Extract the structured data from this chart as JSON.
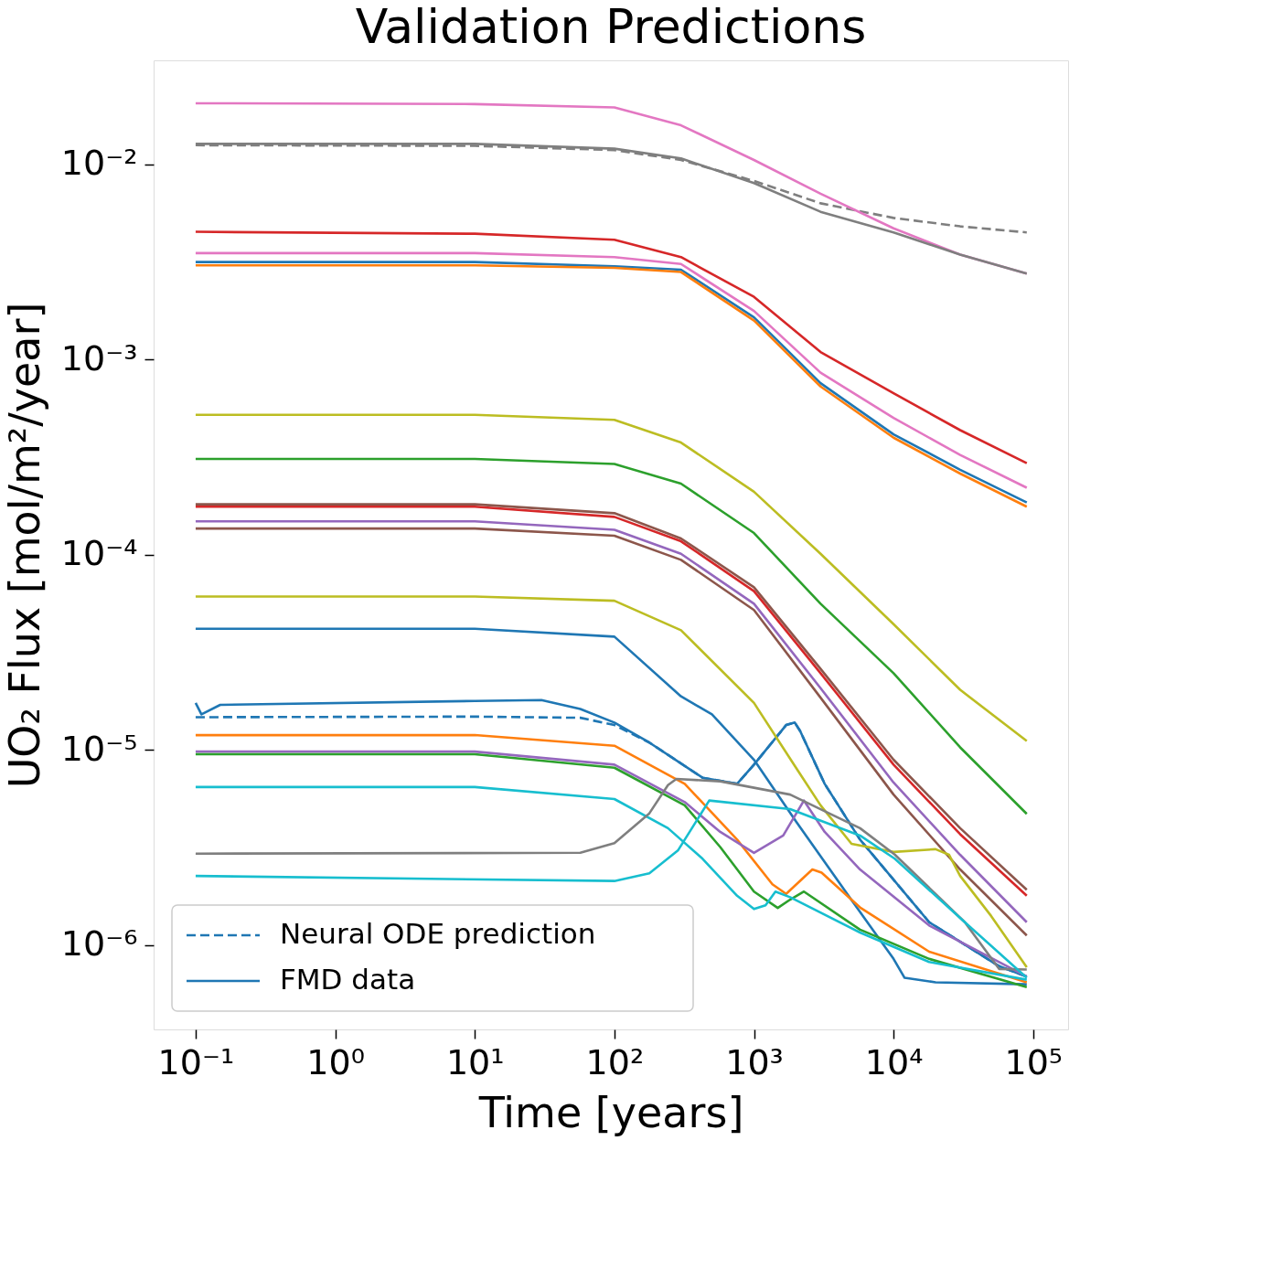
{
  "chart_data": {
    "type": "line",
    "title": "Validation Predictions",
    "xlabel": "Time [years]",
    "ylabel": "UO₂ Flux [mol/m²/year]",
    "log": "xy",
    "grid": false,
    "legend": "bottom left",
    "xlim": [
      0.05,
      178000
    ],
    "ylim": [
      3.7e-07,
      0.034
    ],
    "xticks": [
      {
        "value": 0.1,
        "label": "10⁻¹"
      },
      {
        "value": 1,
        "label": "10⁰"
      },
      {
        "value": 10,
        "label": "10¹"
      },
      {
        "value": 100,
        "label": "10²"
      },
      {
        "value": 1000,
        "label": "10³"
      },
      {
        "value": 10000,
        "label": "10⁴"
      },
      {
        "value": 100000,
        "label": "10⁵"
      }
    ],
    "yticks": [
      {
        "value": 1e-06,
        "label": "10⁻⁶"
      },
      {
        "value": 1e-05,
        "label": "10⁻⁵"
      },
      {
        "value": 0.0001,
        "label": "10⁻⁴"
      },
      {
        "value": 0.001,
        "label": "10⁻³"
      },
      {
        "value": 0.01,
        "label": "10⁻²"
      }
    ],
    "x": [
      0.1,
      10,
      100,
      300,
      1000,
      3000,
      10000,
      30000,
      90000
    ],
    "series": [
      {
        "name": "Neural ODE prediction",
        "color": "#1f77b4",
        "line_style": "dashed",
        "x": [
          0.1,
          10,
          57,
          100,
          178,
          428,
          757,
          1000,
          1700,
          1960,
          2140,
          3210,
          5750,
          18000,
          57000,
          90000
        ],
        "values": [
          1.47e-05,
          1.48e-05,
          1.46e-05,
          1.34e-05,
          1.09e-05,
          7.2e-06,
          6.7e-06,
          8.4e-06,
          1.34e-05,
          1.38e-05,
          1.25e-05,
          6.7e-06,
          3.47e-06,
          1.31e-06,
          7.8e-07,
          6.9e-07
        ]
      },
      {
        "name": "FMD data",
        "color": "#1f77b4",
        "line_style": "solid",
        "x": [
          0.1,
          0.11,
          0.15,
          10,
          30,
          57,
          100,
          178,
          428,
          757,
          1000,
          1700,
          1960,
          2140,
          3210,
          5750,
          18000,
          57000,
          90000
        ],
        "values": [
          1.74e-05,
          1.52e-05,
          1.7e-05,
          1.78e-05,
          1.8e-05,
          1.62e-05,
          1.38e-05,
          1.09e-05,
          7.2e-06,
          6.7e-06,
          8.4e-06,
          1.34e-05,
          1.38e-05,
          1.25e-05,
          6.7e-06,
          3.47e-06,
          1.31e-06,
          7.8e-07,
          6.9e-07
        ]
      },
      {
        "color": "#e377c2",
        "line_style": "solid",
        "values": [
          0.0205,
          0.0203,
          0.0195,
          0.0158,
          0.0105,
          0.00705,
          0.00469,
          0.00344,
          0.00275
        ]
      },
      {
        "color": "#7f7f7f",
        "line_style": "solid",
        "values": [
          0.0127,
          0.0127,
          0.012,
          0.0107,
          0.008,
          0.0057,
          0.00447,
          0.00344,
          0.00275
        ]
      },
      {
        "color": "#7f7f7f",
        "line_style": "dashed",
        "values": [
          0.0125,
          0.0124,
          0.0118,
          0.0105,
          0.0082,
          0.0063,
          0.0053,
          0.0048,
          0.00447
        ]
      },
      {
        "color": "#d62728",
        "line_style": "solid",
        "values": [
          0.0045,
          0.0044,
          0.0041,
          0.00334,
          0.00209,
          0.00109,
          0.00067,
          0.000434,
          0.000294
        ]
      },
      {
        "color": "#e377c2",
        "line_style": "solid",
        "values": [
          0.0035,
          0.0035,
          0.00334,
          0.00308,
          0.00177,
          0.000855,
          0.000501,
          0.000324,
          0.00022
        ]
      },
      {
        "color": "#1f77b4",
        "line_style": "solid",
        "values": [
          0.00315,
          0.00315,
          0.003,
          0.00288,
          0.00164,
          0.000755,
          0.000413,
          0.000272,
          0.000185
        ]
      },
      {
        "color": "#ff7f0e",
        "line_style": "solid",
        "values": [
          0.00303,
          0.00303,
          0.00294,
          0.0028,
          0.00158,
          0.000726,
          0.000397,
          0.00026,
          0.000176
        ]
      },
      {
        "color": "#bcbd22",
        "line_style": "solid",
        "values": [
          0.00052,
          0.00052,
          0.00049,
          0.000375,
          0.00021,
          0.000101,
          4.4e-05,
          2.03e-05,
          1.11e-05
        ]
      },
      {
        "color": "#2ca02c",
        "line_style": "solid",
        "values": [
          0.000309,
          0.000309,
          0.000291,
          0.000231,
          0.000129,
          5.6e-05,
          2.47e-05,
          1.03e-05,
          4.7e-06
        ]
      },
      {
        "color": "#8c564b",
        "line_style": "solid",
        "values": [
          0.000181,
          0.000181,
          0.000163,
          0.000121,
          6.8e-05,
          2.6e-05,
          8.9e-06,
          3.97e-06,
          1.92e-06
        ]
      },
      {
        "color": "#d62728",
        "line_style": "solid",
        "values": [
          0.000176,
          0.000176,
          0.000156,
          0.000117,
          6.5e-05,
          2.47e-05,
          8.4e-06,
          3.7e-06,
          1.79e-06
        ]
      },
      {
        "color": "#9467bd",
        "line_style": "solid",
        "values": [
          0.000148,
          0.000148,
          0.000134,
          0.000101,
          5.6e-05,
          2.07e-05,
          6.8e-06,
          2.9e-06,
          1.31e-06
        ]
      },
      {
        "color": "#8c564b",
        "line_style": "solid",
        "values": [
          0.000136,
          0.000136,
          0.000125,
          9.4e-05,
          5.2e-05,
          1.85e-05,
          5.9e-06,
          2.44e-06,
          1.12e-06
        ]
      },
      {
        "color": "#bcbd22",
        "line_style": "solid",
        "x": [
          0.1,
          10,
          100,
          300,
          1000,
          2000,
          3000,
          5000,
          10000,
          20000,
          25000,
          30000,
          50000,
          90000
        ],
        "values": [
          6.1e-05,
          6.1e-05,
          5.8e-05,
          4.1e-05,
          1.74e-05,
          8.1e-06,
          5.2e-06,
          3.3e-06,
          3e-06,
          3.1e-06,
          2.9e-06,
          2.26e-06,
          1.41e-06,
          7.7e-07
        ]
      },
      {
        "color": "#1f77b4",
        "line_style": "solid",
        "x": [
          0.1,
          10,
          100,
          300,
          500,
          1000,
          2000,
          5000,
          10000,
          12000,
          20000,
          90000
        ],
        "values": [
          4.17e-05,
          4.17e-05,
          3.8e-05,
          1.88e-05,
          1.52e-05,
          8.9e-06,
          4.3e-06,
          1.7e-06,
          8.5e-07,
          6.8e-07,
          6.45e-07,
          6.3e-07
        ]
      },
      {
        "color": "#ff7f0e",
        "line_style": "solid",
        "x": [
          0.1,
          10,
          100,
          319,
          757,
          1355,
          1700,
          2620,
          3050,
          5750,
          18000,
          90000
        ],
        "values": [
          1.19e-05,
          1.19e-05,
          1.05e-05,
          6.7e-06,
          3.47e-06,
          2.05e-06,
          1.83e-06,
          2.44e-06,
          2.35e-06,
          1.56e-06,
          9.25e-07,
          6.45e-07
        ]
      },
      {
        "color": "#9467bd",
        "line_style": "solid",
        "x": [
          0.1,
          10,
          100,
          319,
          573,
          1000,
          1620,
          2280,
          3210,
          5750,
          18000,
          90000
        ],
        "values": [
          9.8e-06,
          9.8e-06,
          8.4e-06,
          5.4e-06,
          3.8e-06,
          2.97e-06,
          3.64e-06,
          5.5e-06,
          3.8e-06,
          2.44e-06,
          1.26e-06,
          6.9e-07
        ]
      },
      {
        "color": "#2ca02c",
        "line_style": "solid",
        "x": [
          0.1,
          10,
          100,
          319,
          573,
          1000,
          1480,
          1815,
          2280,
          5750,
          18000,
          90000
        ],
        "values": [
          9.5e-06,
          9.5e-06,
          8.1e-06,
          5.2e-06,
          3.18e-06,
          1.88e-06,
          1.55e-06,
          1.71e-06,
          1.88e-06,
          1.2e-06,
          8.5e-07,
          6.1e-07
        ]
      },
      {
        "color": "#17becf",
        "line_style": "solid",
        "x": [
          0.1,
          10,
          100,
          242,
          428,
          757,
          1000,
          1210,
          1425,
          1815,
          5750,
          18000,
          90000
        ],
        "values": [
          6.45e-06,
          6.45e-06,
          5.6e-06,
          3.97e-06,
          2.77e-06,
          1.79e-06,
          1.53e-06,
          1.6e-06,
          1.88e-06,
          1.76e-06,
          1.16e-06,
          8.2e-07,
          6.65e-07
        ]
      },
      {
        "color": "#7f7f7f",
        "line_style": "solid",
        "x": [
          0.1,
          57,
          100,
          178,
          242,
          278,
          573,
          1815,
          5750,
          10200,
          32400,
          57000,
          90000
        ],
        "values": [
          2.94e-06,
          2.97e-06,
          3.33e-06,
          4.73e-06,
          6.6e-06,
          7.1e-06,
          6.9e-06,
          5.9e-06,
          3.97e-06,
          2.91e-06,
          1.31e-06,
          7.55e-07,
          7.5e-07
        ]
      },
      {
        "color": "#17becf",
        "line_style": "solid",
        "x": [
          0.1,
          100,
          178,
          285,
          478,
          1815,
          5750,
          10200,
          32400,
          90000
        ],
        "values": [
          2.26e-06,
          2.13e-06,
          2.33e-06,
          3.05e-06,
          5.5e-06,
          4.97e-06,
          3.64e-06,
          2.77e-06,
          1.31e-06,
          6.8e-07
        ]
      }
    ]
  }
}
